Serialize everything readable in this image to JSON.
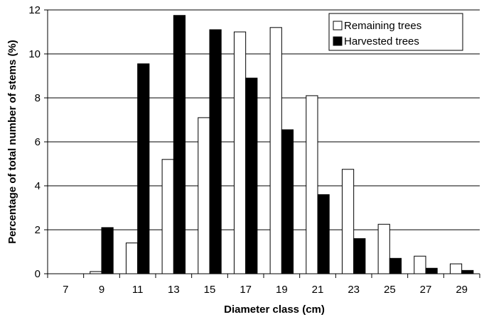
{
  "chart_data": {
    "type": "bar",
    "title": "",
    "xlabel": "Diameter class (cm)",
    "ylabel": "Percentage of total number of stems (%)",
    "ylim": [
      0,
      12
    ],
    "yticks": [
      0,
      2,
      4,
      6,
      8,
      10,
      12
    ],
    "grid": "horizontal",
    "legend_position": "top-right",
    "categories": [
      "7",
      "9",
      "11",
      "13",
      "15",
      "17",
      "19",
      "21",
      "23",
      "25",
      "27",
      "29"
    ],
    "series": [
      {
        "name": "Remaining trees",
        "color": "#ffffff",
        "values": [
          0,
          0.1,
          1.4,
          5.2,
          7.1,
          11.0,
          11.2,
          8.1,
          4.75,
          2.25,
          0.8,
          0.45
        ]
      },
      {
        "name": "Harvested trees",
        "color": "#000000",
        "values": [
          0,
          2.1,
          9.55,
          11.75,
          11.1,
          8.9,
          6.55,
          3.6,
          1.6,
          0.7,
          0.25,
          0.15
        ]
      }
    ]
  }
}
